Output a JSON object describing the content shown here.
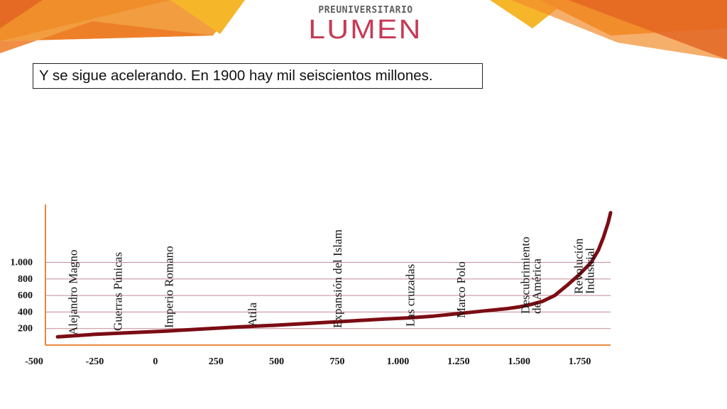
{
  "logo": {
    "top_line": "PREUNIVERSITARIO",
    "main": "LUMEN"
  },
  "caption": "Y se sigue acelerando. En 1900 hay mil seiscientos millones.",
  "colors": {
    "accent_dark": "#e56a24",
    "accent_orange": "#f0922b",
    "accent_yellow": "#f5b62a",
    "curve": "#7b0d14",
    "gridline": "#c48a96",
    "axis": "#e8883a",
    "logo_red": "#c63a55"
  },
  "chart_data": {
    "type": "line",
    "title": "",
    "xlabel": "",
    "ylabel": "",
    "xlim": [
      -500,
      1830
    ],
    "ylim": [
      0,
      1700
    ],
    "x_ticks": [
      {
        "v": -500,
        "label": "-500"
      },
      {
        "v": -250,
        "label": "-250"
      },
      {
        "v": 0,
        "label": "0"
      },
      {
        "v": 250,
        "label": "250"
      },
      {
        "v": 500,
        "label": "500"
      },
      {
        "v": 750,
        "label": "750"
      },
      {
        "v": 1000,
        "label": "1.000"
      },
      {
        "v": 1250,
        "label": "1.250"
      },
      {
        "v": 1500,
        "label": "1.500"
      },
      {
        "v": 1750,
        "label": "1.750"
      }
    ],
    "y_ticks": [
      {
        "v": 200,
        "label": "200"
      },
      {
        "v": 400,
        "label": "400"
      },
      {
        "v": 600,
        "label": "600"
      },
      {
        "v": 800,
        "label": "800"
      },
      {
        "v": 1000,
        "label": "1.000"
      }
    ],
    "grid": true,
    "series": [
      {
        "x": [
          -450,
          -300,
          -150,
          0,
          150,
          300,
          450,
          600,
          750,
          900,
          1000,
          1100,
          1200,
          1300,
          1400,
          1450,
          1500,
          1550,
          1600,
          1650,
          1700,
          1750,
          1780,
          1800,
          1820,
          1830
        ],
        "y": [
          100,
          130,
          150,
          170,
          195,
          220,
          240,
          265,
          290,
          315,
          330,
          350,
          380,
          410,
          440,
          460,
          490,
          530,
          600,
          720,
          850,
          1000,
          1150,
          1300,
          1480,
          1600
        ]
      }
    ],
    "annotations": [
      {
        "x": -370,
        "lines": [
          "Alejandro Magno"
        ]
      },
      {
        "x": -185,
        "lines": [
          "Guerras Púnicas"
        ]
      },
      {
        "x": 25,
        "lines": [
          "Imperio Romano"
        ]
      },
      {
        "x": 370,
        "lines": [
          "Atila"
        ]
      },
      {
        "x": 720,
        "lines": [
          "Expansión del Islam"
        ]
      },
      {
        "x": 1020,
        "lines": [
          "Las cruzadas"
        ]
      },
      {
        "x": 1230,
        "lines": [
          "Marco Polo"
        ]
      },
      {
        "x": 1495,
        "lines": [
          "Descubrimiento",
          "de América"
        ]
      },
      {
        "x": 1715,
        "lines": [
          "Revolución",
          "Industrial"
        ]
      }
    ]
  }
}
